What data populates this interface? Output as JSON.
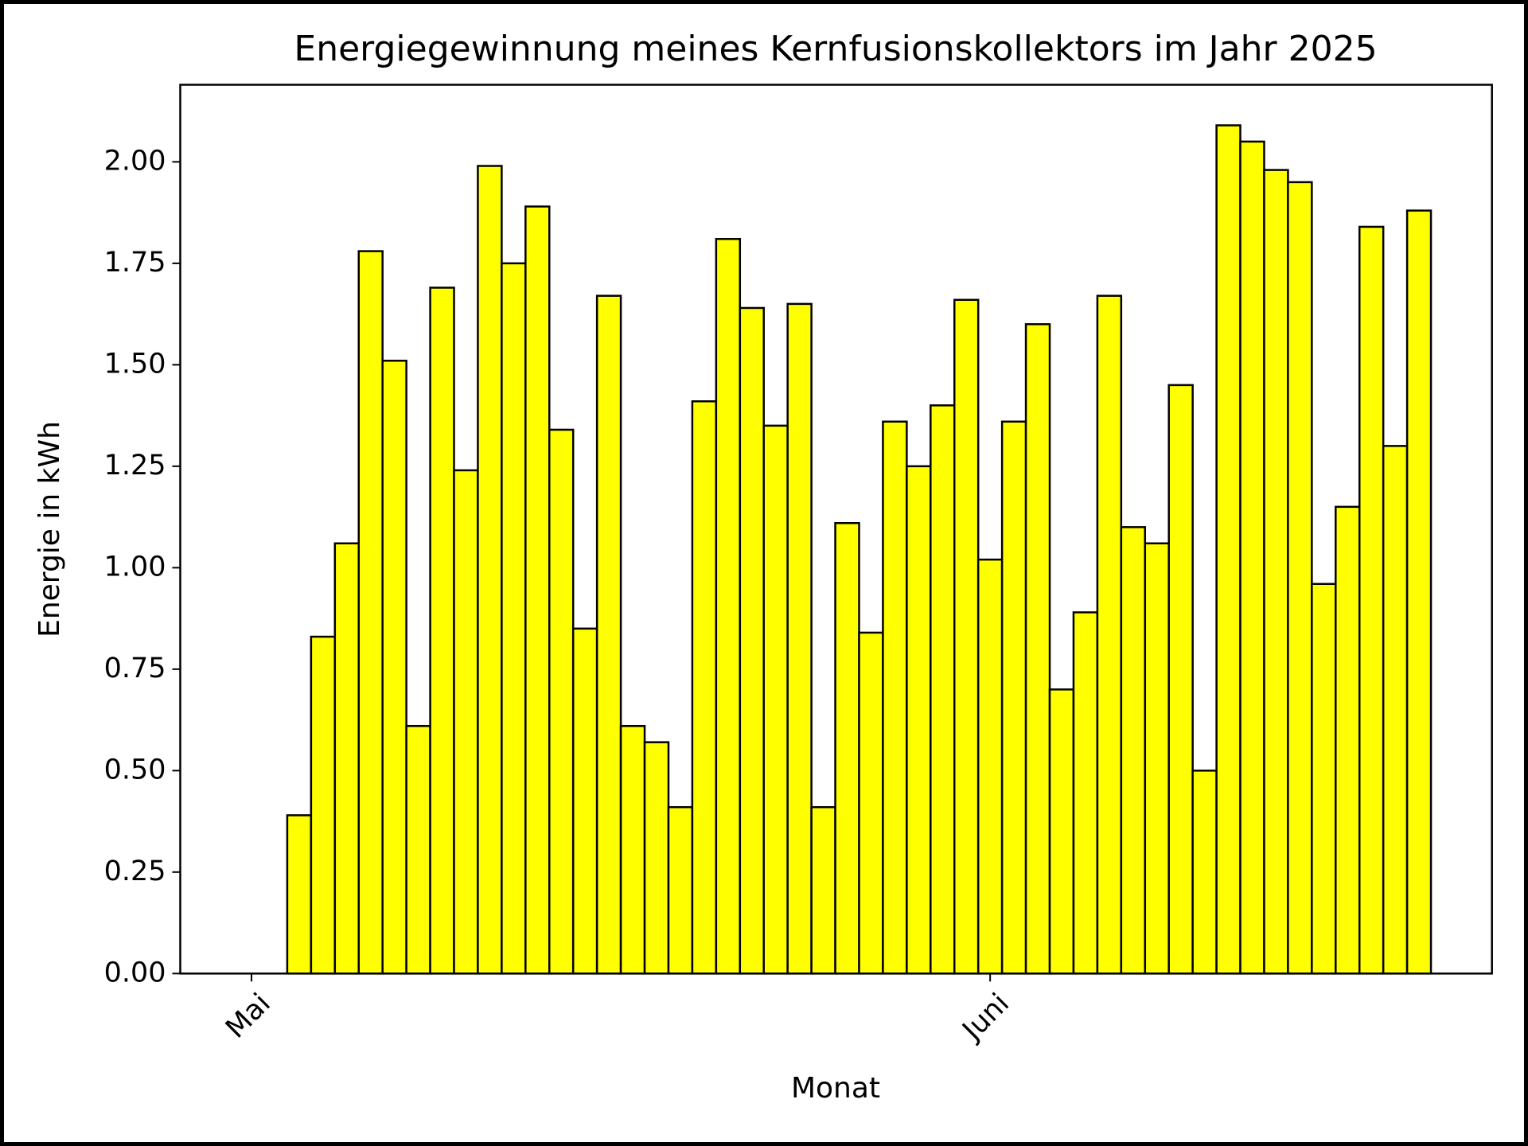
{
  "chart_data": {
    "type": "bar",
    "title": "Energiegewinnung meines Kernfusionskollektors im Jahr 2025",
    "xlabel": "Monat",
    "ylabel": "Energie in kWh",
    "categories": [
      "Mai",
      null,
      null,
      null,
      null,
      null,
      null,
      null,
      null,
      null,
      null,
      null,
      null,
      null,
      null,
      null,
      null,
      null,
      null,
      null,
      null,
      null,
      null,
      null,
      null,
      null,
      null,
      null,
      null,
      null,
      null,
      "Juni",
      null,
      null,
      null,
      null,
      null,
      null,
      null,
      null,
      null,
      null,
      null,
      null,
      null,
      null,
      null,
      null,
      null,
      null
    ],
    "values": [
      0,
      0,
      0.39,
      0.83,
      1.06,
      1.78,
      1.51,
      0.61,
      1.69,
      1.24,
      1.99,
      1.75,
      1.89,
      1.34,
      0.85,
      1.67,
      0.61,
      0.57,
      0.41,
      1.41,
      1.81,
      1.64,
      1.35,
      1.65,
      0.41,
      1.11,
      0.84,
      1.36,
      1.25,
      1.4,
      1.66,
      1.02,
      1.36,
      1.6,
      0.7,
      0.89,
      1.67,
      1.1,
      1.06,
      1.45,
      0.5,
      2.09,
      2.05,
      1.98,
      1.95,
      0.96,
      1.15,
      1.84,
      1.3,
      1.88
    ],
    "color": "#ffff00",
    "edgecolor": "#000000",
    "ylim": [
      0,
      2.19
    ],
    "yticks": [
      {
        "value": 0,
        "label": "0.00"
      },
      {
        "value": 0.25,
        "label": "0.25"
      },
      {
        "value": 0.5,
        "label": "0.50"
      },
      {
        "value": 0.75,
        "label": "0.75"
      },
      {
        "value": 1,
        "label": "1.00"
      },
      {
        "value": 1.25,
        "label": "1.25"
      },
      {
        "value": 1.5,
        "label": "1.50"
      },
      {
        "value": 1.75,
        "label": "1.75"
      },
      {
        "value": 2,
        "label": "2.00"
      }
    ],
    "grid": false
  }
}
